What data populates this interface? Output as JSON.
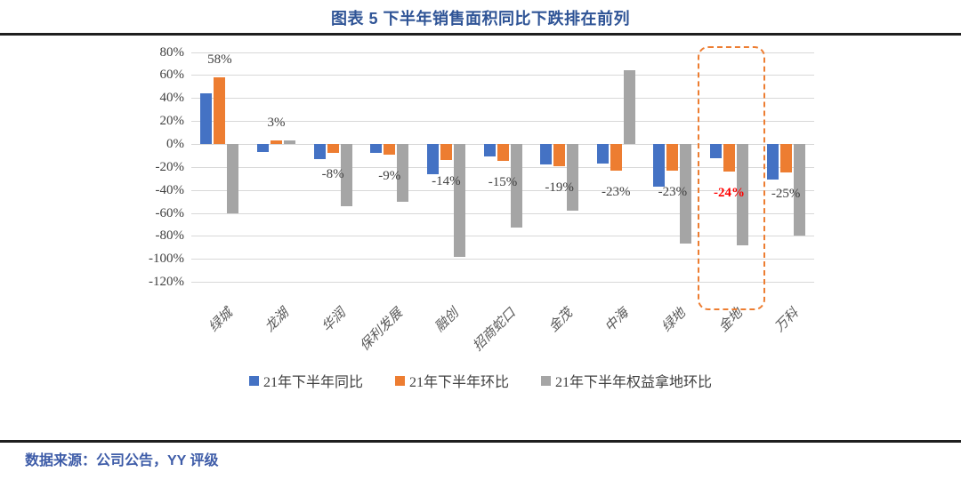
{
  "title": "图表 5 下半年销售面积同比下跌排在前列",
  "footer": {
    "source": "数据来源：公司公告，YY 评级"
  },
  "colors": {
    "series_yoy": "#4472C4",
    "series_mom": "#ED7D31",
    "series_land": "#A5A5A5",
    "title_text": "#2F5496",
    "footer_text": "#3E5CA8",
    "highlight_label": "#FF0000",
    "highlight_box": "#ED7D31",
    "gridline": "#D8D8D8",
    "axis_text": "#404040",
    "category_text": "#595959",
    "rule": "#1F1F1F"
  },
  "chart_data": {
    "type": "bar",
    "title": "图表 5 下半年销售面积同比下跌排在前列",
    "categories": [
      "绿城",
      "龙湖",
      "华润",
      "保利发展",
      "融创",
      "招商蛇口",
      "金茂",
      "中海",
      "绿地",
      "金地",
      "万科"
    ],
    "series": [
      {
        "name": "21年下半年同比",
        "color": "#4472C4",
        "values": [
          44,
          -7,
          -13,
          -8,
          -26,
          -11,
          -18,
          -17,
          -37,
          -12,
          -31
        ]
      },
      {
        "name": "21年下半年环比",
        "color": "#ED7D31",
        "values": [
          58,
          3,
          -8,
          -9,
          -14,
          -15,
          -19,
          -23,
          -23,
          -24,
          -25
        ]
      },
      {
        "name": "21年下半年权益拿地环比",
        "color": "#A5A5A5",
        "values": [
          -60,
          3,
          -54,
          -50,
          -98,
          -73,
          -58,
          64,
          -87,
          -88,
          -80
        ]
      }
    ],
    "data_labels": {
      "series": "21年下半年环比",
      "values": [
        "58%",
        "3%",
        "-8%",
        "-9%",
        "-14%",
        "-15%",
        "-19%",
        "-23%",
        "-23%",
        "-24%",
        "-25%"
      ],
      "highlight_index": 9
    },
    "y_ticks": [
      "80%",
      "60%",
      "40%",
      "20%",
      "0%",
      "-20%",
      "-40%",
      "-60%",
      "-80%",
      "-100%",
      "-120%"
    ],
    "ylim": [
      -120,
      80
    ],
    "grid": true,
    "legend_position": "bottom",
    "highlight_box_category": "金地"
  }
}
